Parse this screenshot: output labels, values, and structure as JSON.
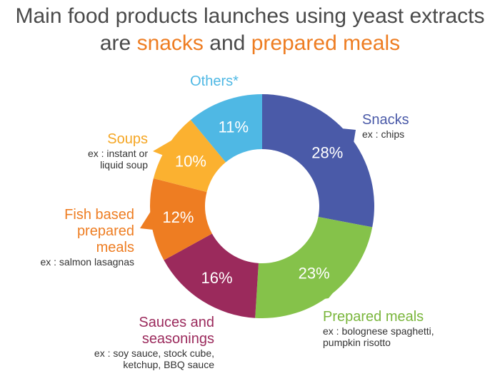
{
  "title": {
    "line1": "Main food products launches using yeast extracts",
    "line2_pre": "are",
    "line2_hl1": "snacks",
    "line2_mid": "and",
    "line2_hl2": "prepared meals"
  },
  "chart_data": {
    "type": "pie",
    "style": "donut",
    "series": [
      {
        "name": "Snacks",
        "value": 28,
        "label": "28%",
        "example": "ex : chips",
        "color": "#4a5aa8"
      },
      {
        "name": "Prepared meals",
        "value": 23,
        "label": "23%",
        "example": "ex : bolognese spaghetti, pumpkin risotto",
        "color": "#85c24a"
      },
      {
        "name": "Sauces and seasonings",
        "value": 16,
        "label": "16%",
        "example": "ex : soy sauce, stock cube, ketchup, BBQ sauce",
        "color": "#9b2a5c"
      },
      {
        "name": "Fish based prepared meals",
        "value": 12,
        "label": "12%",
        "example": "ex : salmon lasagnas",
        "color": "#ee7d22"
      },
      {
        "name": "Soups",
        "value": 10,
        "label": "10%",
        "example": "ex : instant or liquid soup",
        "color": "#fbb130"
      },
      {
        "name": "Others*",
        "value": 11,
        "label": "11%",
        "example": "",
        "color": "#4fb8e4"
      }
    ]
  }
}
